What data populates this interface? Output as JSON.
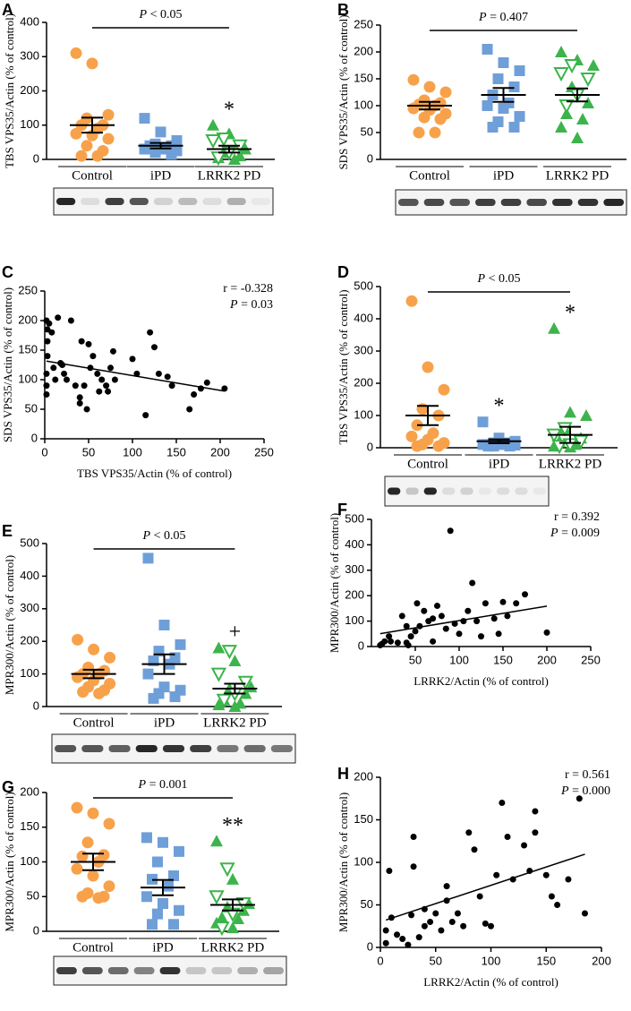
{
  "chart_data": [
    {
      "type": "dotplot",
      "panel": "A",
      "ylabel": "TBS VPS35/Actin (% of control)",
      "ylim": [
        0,
        400
      ],
      "yticks": [
        0,
        100,
        200,
        300,
        400
      ],
      "categories": [
        "Control",
        "iPD",
        "LRRK2 PD"
      ],
      "significance": "P < 0.05",
      "groups": [
        {
          "color": "#f7a24b",
          "marker": "circle",
          "values": [
            310,
            280,
            130,
            120,
            100,
            100,
            90,
            75,
            70,
            60,
            40,
            25,
            10,
            10
          ],
          "mean": 100,
          "sem": 22
        },
        {
          "color": "#6f9fd8",
          "marker": "square",
          "values": [
            120,
            80,
            55,
            45,
            40,
            40,
            35,
            30,
            30,
            25,
            20,
            15
          ],
          "mean": 40,
          "sem": 8
        },
        {
          "color": "#3cb44b",
          "marker": "triangle",
          "values": [
            100,
            75,
            30,
            20,
            10,
            5,
            0
          ],
          "open_values": [
            60,
            55,
            40,
            20,
            5
          ],
          "mean": 30,
          "sem": 10,
          "annotation": "*"
        }
      ]
    },
    {
      "type": "dotplot",
      "panel": "B",
      "ylabel": "SDS VPS35/Actin (% of control)",
      "ylim": [
        0,
        250
      ],
      "yticks": [
        0,
        50,
        100,
        150,
        200,
        250
      ],
      "categories": [
        "Control",
        "iPD",
        "LRRK2 PD"
      ],
      "significance": "P = 0.407",
      "groups": [
        {
          "color": "#f7a24b",
          "marker": "circle",
          "values": [
            148,
            135,
            125,
            110,
            105,
            102,
            100,
            95,
            92,
            85,
            78,
            75,
            50,
            50
          ],
          "mean": 100,
          "sem": 7
        },
        {
          "color": "#6f9fd8",
          "marker": "square",
          "values": [
            205,
            180,
            165,
            150,
            135,
            120,
            105,
            100,
            95,
            80,
            70,
            60,
            60
          ],
          "mean": 120,
          "sem": 13
        },
        {
          "color": "#3cb44b",
          "marker": "triangle",
          "values": [
            200,
            185,
            175,
            135,
            105,
            85,
            75,
            60,
            40
          ],
          "open_values": [
            175,
            160,
            150,
            120,
            100
          ],
          "mean": 120,
          "sem": 12
        }
      ]
    },
    {
      "type": "scatter",
      "panel": "C",
      "ylabel": "SDS VPS35/Actin (% of control)",
      "xlabel": "TBS VPS35/Actin (% of control)",
      "xlim": [
        0,
        250
      ],
      "ylim": [
        0,
        250
      ],
      "xticks": [
        0,
        50,
        100,
        150,
        200,
        250
      ],
      "yticks": [
        0,
        50,
        100,
        150,
        200,
        250
      ],
      "r_text": "r = -0.328",
      "p_text": "P = 0.03",
      "color": "#000000",
      "x": [
        2,
        3,
        3,
        3,
        2,
        2,
        2,
        5,
        8,
        10,
        12,
        15,
        18,
        20,
        22,
        25,
        30,
        35,
        40,
        40,
        42,
        45,
        48,
        50,
        52,
        55,
        60,
        62,
        65,
        70,
        72,
        75,
        78,
        80,
        100,
        105,
        115,
        120,
        125,
        130,
        140,
        145,
        165,
        170,
        178,
        185,
        205
      ],
      "y": [
        200,
        185,
        165,
        140,
        110,
        90,
        75,
        195,
        180,
        120,
        100,
        205,
        128,
        125,
        110,
        100,
        200,
        90,
        60,
        70,
        165,
        90,
        50,
        160,
        120,
        140,
        110,
        80,
        100,
        90,
        80,
        120,
        148,
        100,
        135,
        110,
        40,
        180,
        155,
        110,
        105,
        90,
        50,
        75,
        85,
        95,
        85
      ],
      "fit": {
        "intercept": 132,
        "slope": -0.25
      }
    },
    {
      "type": "dotplot",
      "panel": "D",
      "ylabel": "TBS VPS35/Actin (% of control)",
      "ylim": [
        0,
        500
      ],
      "yticks": [
        0,
        100,
        200,
        300,
        400,
        500
      ],
      "categories": [
        "Control",
        "iPD",
        "LRRK2 PD"
      ],
      "significance": "P < 0.05",
      "groups": [
        {
          "color": "#f7a24b",
          "marker": "circle",
          "values": [
            455,
            250,
            180,
            120,
            100,
            70,
            45,
            35,
            25,
            15,
            10,
            5,
            5
          ],
          "mean": 100,
          "sem": 30
        },
        {
          "color": "#6f9fd8",
          "marker": "square",
          "values": [
            80,
            30,
            20,
            15,
            15,
            10,
            10,
            10,
            10,
            8,
            5,
            5,
            5
          ],
          "mean": 20,
          "sem": 6,
          "annotation": "*"
        },
        {
          "color": "#3cb44b",
          "marker": "triangle",
          "values": [
            370,
            110,
            100,
            60,
            30,
            20,
            10,
            5,
            2
          ],
          "open_values": [
            60,
            40,
            20,
            10,
            5
          ],
          "mean": 40,
          "sem": 25,
          "annotation": "*"
        }
      ]
    },
    {
      "type": "dotplot",
      "panel": "E",
      "ylabel": "MPR300/Actin (% of control)",
      "ylim": [
        0,
        500
      ],
      "yticks": [
        0,
        100,
        200,
        300,
        400,
        500
      ],
      "categories": [
        "Control",
        "iPD",
        "LRRK2 PD"
      ],
      "significance": "P < 0.05",
      "groups": [
        {
          "color": "#f7a24b",
          "marker": "circle",
          "values": [
            205,
            175,
            150,
            120,
            110,
            100,
            100,
            90,
            80,
            70,
            60,
            50,
            45,
            40
          ],
          "mean": 100,
          "sem": 13
        },
        {
          "color": "#6f9fd8",
          "marker": "square",
          "values": [
            455,
            250,
            190,
            170,
            150,
            140,
            130,
            100,
            60,
            50,
            40,
            30,
            25
          ],
          "mean": 130,
          "sem": 30
        },
        {
          "color": "#3cb44b",
          "marker": "triangle",
          "values": [
            180,
            140,
            60,
            55,
            40,
            20,
            10,
            5,
            0
          ],
          "open_values": [
            170,
            100,
            75,
            40,
            20
          ],
          "mean": 55,
          "sem": 15,
          "annotation": "+"
        }
      ]
    },
    {
      "type": "scatter",
      "panel": "F",
      "ylabel": "MPR300/Actin (% of control)",
      "xlabel": "LRRK2/Actin (% of control)",
      "xlim": [
        0,
        250
      ],
      "ylim": [
        0,
        500
      ],
      "xticks": [
        50,
        100,
        150,
        200,
        250
      ],
      "yticks": [
        0,
        100,
        200,
        300,
        400,
        500
      ],
      "r_text": "r = 0.392",
      "p_text": "P = 0.009",
      "color": "#000000",
      "x": [
        10,
        12,
        15,
        20,
        22,
        30,
        35,
        40,
        40,
        42,
        45,
        50,
        52,
        55,
        60,
        65,
        70,
        70,
        75,
        80,
        85,
        90,
        95,
        100,
        105,
        110,
        115,
        120,
        125,
        130,
        140,
        145,
        150,
        155,
        165,
        175,
        200
      ],
      "y": [
        5,
        10,
        20,
        40,
        20,
        15,
        120,
        80,
        15,
        5,
        40,
        60,
        170,
        80,
        140,
        100,
        110,
        20,
        160,
        120,
        70,
        455,
        90,
        50,
        100,
        140,
        250,
        100,
        40,
        170,
        110,
        50,
        175,
        120,
        170,
        205,
        55
      ],
      "fit": {
        "intercept": 45,
        "slope": 0.57
      }
    },
    {
      "type": "dotplot",
      "panel": "G",
      "ylabel": "MPR300/Actin (% of control)",
      "ylim": [
        0,
        200
      ],
      "yticks": [
        0,
        50,
        100,
        150,
        200
      ],
      "categories": [
        "Control",
        "iPD",
        "LRRK2 PD"
      ],
      "significance": "P = 0.001",
      "groups": [
        {
          "color": "#f7a24b",
          "marker": "circle",
          "values": [
            178,
            170,
            155,
            128,
            110,
            108,
            100,
            90,
            80,
            65,
            55,
            50,
            50,
            48
          ],
          "mean": 100,
          "sem": 12
        },
        {
          "color": "#6f9fd8",
          "marker": "square",
          "values": [
            135,
            128,
            115,
            100,
            80,
            75,
            65,
            50,
            40,
            30,
            25,
            10,
            10
          ],
          "mean": 63,
          "sem": 11
        },
        {
          "color": "#3cb44b",
          "marker": "triangle",
          "values": [
            130,
            75,
            40,
            35,
            30,
            20,
            18,
            12,
            5
          ],
          "open_values": [
            90,
            50,
            40,
            25,
            5
          ],
          "mean": 38,
          "sem": 8,
          "annotation": "**"
        }
      ]
    },
    {
      "type": "scatter",
      "panel": "H",
      "ylabel": "MPR300/Actin (% of control)",
      "xlabel": "LRRK2/Actin (% of control)",
      "xlim": [
        0,
        200
      ],
      "ylim": [
        0,
        200
      ],
      "xticks": [
        0,
        50,
        100,
        150,
        200
      ],
      "yticks": [
        0,
        50,
        100,
        150,
        200
      ],
      "r_text": "r = 0.561",
      "p_text": "P = 0.000",
      "color": "#000000",
      "x": [
        5,
        5,
        8,
        10,
        15,
        20,
        25,
        28,
        30,
        30,
        35,
        40,
        40,
        45,
        50,
        55,
        60,
        60,
        65,
        70,
        75,
        80,
        85,
        90,
        95,
        100,
        105,
        110,
        115,
        120,
        130,
        135,
        140,
        140,
        150,
        155,
        160,
        170,
        180,
        185
      ],
      "y": [
        20,
        5,
        90,
        35,
        15,
        10,
        3,
        38,
        130,
        95,
        12,
        45,
        25,
        30,
        40,
        20,
        55,
        72,
        30,
        40,
        25,
        135,
        115,
        60,
        28,
        25,
        85,
        170,
        130,
        80,
        120,
        90,
        135,
        160,
        85,
        60,
        50,
        80,
        175,
        40
      ],
      "fit": {
        "intercept": 30,
        "slope": 0.43
      }
    }
  ]
}
